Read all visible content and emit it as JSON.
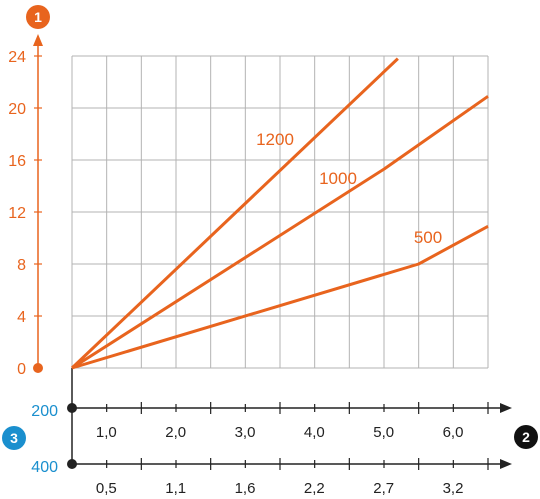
{
  "chart_data": {
    "type": "line",
    "title": "",
    "y_axis": {
      "marker": "1",
      "ylim": [
        0,
        24
      ],
      "ticks": [
        "0",
        "4",
        "8",
        "12",
        "16",
        "20",
        "24"
      ]
    },
    "x_axis": {
      "marker": "2",
      "xlim": [
        0,
        6.0
      ],
      "ticks": [
        "1,0",
        "2,0",
        "3,0",
        "4,0",
        "5,0",
        "6,0"
      ]
    },
    "x_axis_secondary": {
      "ticks": [
        "0,5",
        "1,1",
        "1,6",
        "2,2",
        "2,7",
        "3,2"
      ]
    },
    "left_labels": {
      "marker": "3",
      "upper": "200",
      "lower": "400"
    },
    "grid": true,
    "series": [
      {
        "name": "1200",
        "x": [
          0,
          4.7
        ],
        "y": [
          0,
          23.8
        ]
      },
      {
        "name": "1000",
        "x": [
          0,
          4.5,
          6.0
        ],
        "y": [
          0,
          15.3,
          20.9
        ]
      },
      {
        "name": "500",
        "x": [
          0,
          5.0,
          6.0
        ],
        "y": [
          0,
          8.0,
          10.9
        ]
      }
    ],
    "colors": {
      "series": "#e8641e",
      "y_axis": "#e8641e",
      "x_axis": "#222222",
      "grid": "#b3b3b3",
      "blue_marker": "#1a8fce"
    }
  }
}
